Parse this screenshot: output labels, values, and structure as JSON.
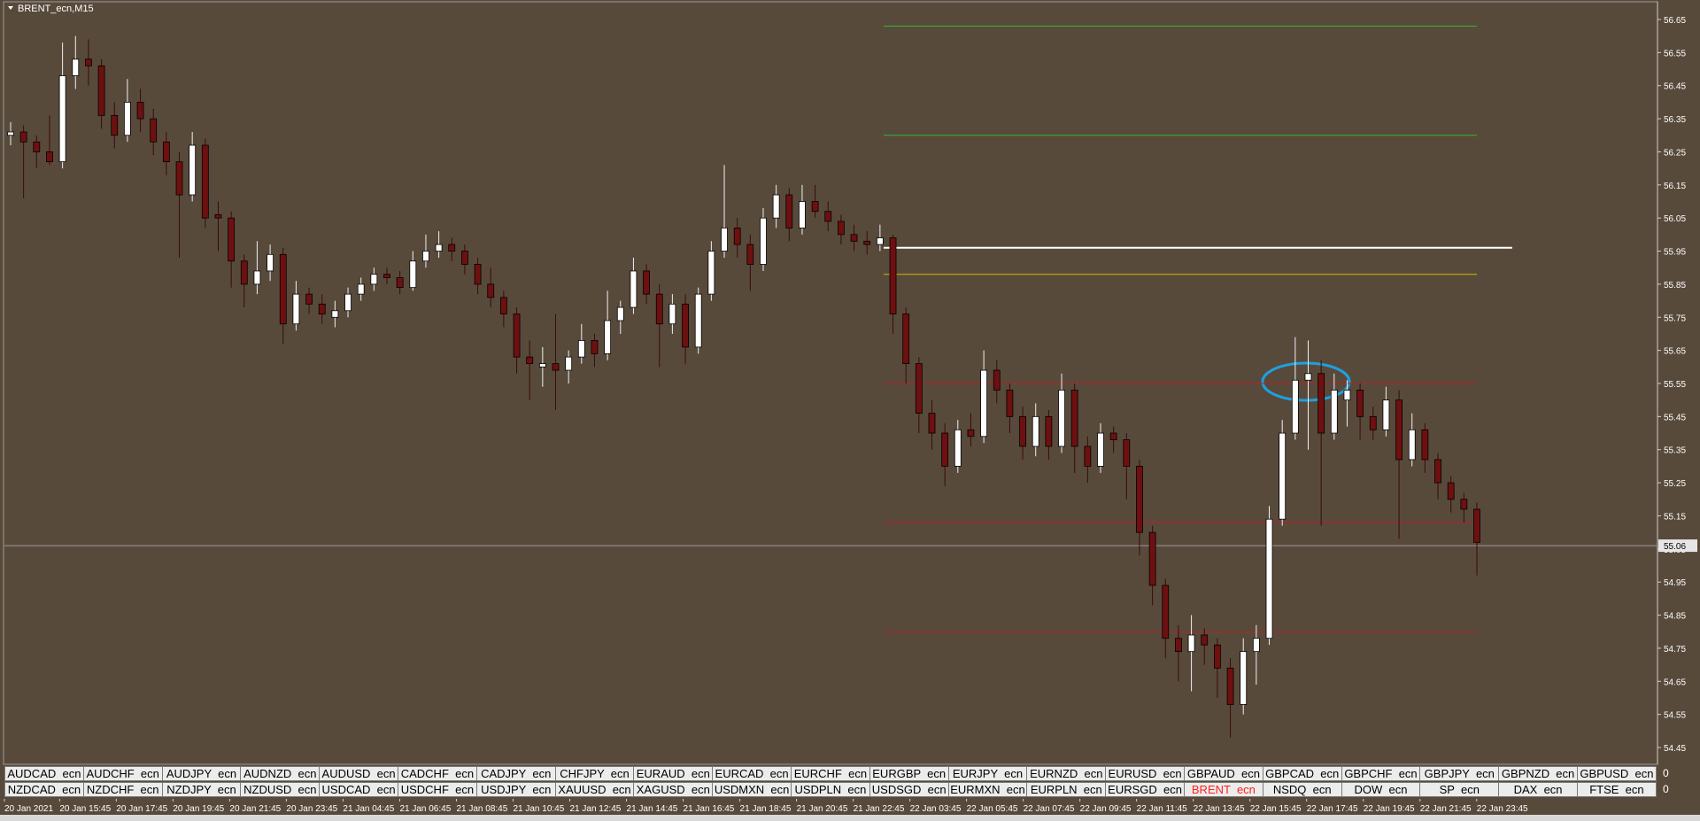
{
  "window_title": "BRENT_ecn,M15",
  "chart_data": {
    "type": "candlestick",
    "candles": [
      [
        56.3,
        56.34,
        56.27,
        56.31
      ],
      [
        56.31,
        56.33,
        56.11,
        56.28
      ],
      [
        56.28,
        56.3,
        56.2,
        56.25
      ],
      [
        56.25,
        56.36,
        56.21,
        56.22
      ],
      [
        56.22,
        56.58,
        56.2,
        56.48
      ],
      [
        56.48,
        56.6,
        56.44,
        56.53
      ],
      [
        56.53,
        56.59,
        56.45,
        56.51
      ],
      [
        56.51,
        56.53,
        56.32,
        56.36
      ],
      [
        56.36,
        56.4,
        56.26,
        56.3
      ],
      [
        56.3,
        56.47,
        56.28,
        56.4
      ],
      [
        56.4,
        56.44,
        56.31,
        56.35
      ],
      [
        56.35,
        56.38,
        56.24,
        56.28
      ],
      [
        56.28,
        56.31,
        56.18,
        56.22
      ],
      [
        56.22,
        56.25,
        55.93,
        56.12
      ],
      [
        56.12,
        56.31,
        56.1,
        56.27
      ],
      [
        56.27,
        56.29,
        56.02,
        56.05
      ],
      [
        56.06,
        56.1,
        55.95,
        56.05
      ],
      [
        56.05,
        56.07,
        55.84,
        55.92
      ],
      [
        55.92,
        55.94,
        55.78,
        55.85
      ],
      [
        55.85,
        55.98,
        55.82,
        55.89
      ],
      [
        55.89,
        55.97,
        55.86,
        55.94
      ],
      [
        55.94,
        55.96,
        55.67,
        55.73
      ],
      [
        55.73,
        55.86,
        55.71,
        55.82
      ],
      [
        55.82,
        55.84,
        55.76,
        55.79
      ],
      [
        55.79,
        55.82,
        55.73,
        55.76
      ],
      [
        55.75,
        55.8,
        55.72,
        55.77
      ],
      [
        55.77,
        55.84,
        55.75,
        55.82
      ],
      [
        55.82,
        55.87,
        55.8,
        55.85
      ],
      [
        55.85,
        55.9,
        55.83,
        55.88
      ],
      [
        55.88,
        55.9,
        55.85,
        55.87
      ],
      [
        55.87,
        55.89,
        55.82,
        55.84
      ],
      [
        55.84,
        55.95,
        55.83,
        55.92
      ],
      [
        55.92,
        56.0,
        55.9,
        55.95
      ],
      [
        55.95,
        56.01,
        55.93,
        55.97
      ],
      [
        55.97,
        55.99,
        55.92,
        55.95
      ],
      [
        55.95,
        55.97,
        55.88,
        55.91
      ],
      [
        55.91,
        55.93,
        55.82,
        55.85
      ],
      [
        55.85,
        55.9,
        55.78,
        55.81
      ],
      [
        55.81,
        55.83,
        55.72,
        55.76
      ],
      [
        55.76,
        55.78,
        55.58,
        55.63
      ],
      [
        55.63,
        55.68,
        55.5,
        55.61
      ],
      [
        55.6,
        55.66,
        55.54,
        55.61
      ],
      [
        55.61,
        55.76,
        55.47,
        55.59
      ],
      [
        55.59,
        55.65,
        55.55,
        55.63
      ],
      [
        55.63,
        55.73,
        55.61,
        55.68
      ],
      [
        55.68,
        55.7,
        55.6,
        55.64
      ],
      [
        55.64,
        55.83,
        55.62,
        55.74
      ],
      [
        55.74,
        55.8,
        55.7,
        55.78
      ],
      [
        55.78,
        55.93,
        55.76,
        55.89
      ],
      [
        55.89,
        55.91,
        55.79,
        55.82
      ],
      [
        55.82,
        55.85,
        55.6,
        55.73
      ],
      [
        55.73,
        55.82,
        55.7,
        55.79
      ],
      [
        55.79,
        55.82,
        55.61,
        55.66
      ],
      [
        55.66,
        55.84,
        55.64,
        55.82
      ],
      [
        55.82,
        55.98,
        55.8,
        55.95
      ],
      [
        55.95,
        56.21,
        55.93,
        56.02
      ],
      [
        56.02,
        56.05,
        55.93,
        55.97
      ],
      [
        55.97,
        56.0,
        55.83,
        55.91
      ],
      [
        55.91,
        56.08,
        55.89,
        56.05
      ],
      [
        56.05,
        56.15,
        56.02,
        56.12
      ],
      [
        56.12,
        56.14,
        55.98,
        56.02
      ],
      [
        56.02,
        56.15,
        56.0,
        56.1
      ],
      [
        56.1,
        56.15,
        56.05,
        56.07
      ],
      [
        56.07,
        56.1,
        56.01,
        56.04
      ],
      [
        56.04,
        56.06,
        55.97,
        56.0
      ],
      [
        56.0,
        56.03,
        55.95,
        55.98
      ],
      [
        55.98,
        56.01,
        55.94,
        55.97
      ],
      [
        55.97,
        56.03,
        55.95,
        55.99
      ],
      [
        55.99,
        56.0,
        55.7,
        55.76
      ],
      [
        55.76,
        55.78,
        55.55,
        55.61
      ],
      [
        55.61,
        55.63,
        55.4,
        55.46
      ],
      [
        55.46,
        55.5,
        55.35,
        55.4
      ],
      [
        55.4,
        55.43,
        55.24,
        55.3
      ],
      [
        55.3,
        55.44,
        55.28,
        55.41
      ],
      [
        55.41,
        55.46,
        55.36,
        55.39
      ],
      [
        55.39,
        55.65,
        55.37,
        55.59
      ],
      [
        55.59,
        55.62,
        55.49,
        55.53
      ],
      [
        55.53,
        55.55,
        55.4,
        55.45
      ],
      [
        55.45,
        55.48,
        55.32,
        55.36
      ],
      [
        55.36,
        55.49,
        55.33,
        55.45
      ],
      [
        55.45,
        55.47,
        55.32,
        55.36
      ],
      [
        55.36,
        55.58,
        55.34,
        55.53
      ],
      [
        55.53,
        55.55,
        55.28,
        55.36
      ],
      [
        55.36,
        55.39,
        55.25,
        55.3
      ],
      [
        55.3,
        55.43,
        55.28,
        55.4
      ],
      [
        55.4,
        55.42,
        55.34,
        55.38
      ],
      [
        55.38,
        55.4,
        55.2,
        55.3
      ],
      [
        55.3,
        55.32,
        55.03,
        55.1
      ],
      [
        55.1,
        55.12,
        54.88,
        54.94
      ],
      [
        54.94,
        54.96,
        54.72,
        54.78
      ],
      [
        54.78,
        54.82,
        54.65,
        54.74
      ],
      [
        54.74,
        54.85,
        54.62,
        54.79
      ],
      [
        54.79,
        54.81,
        54.7,
        54.76
      ],
      [
        54.76,
        54.78,
        54.6,
        54.69
      ],
      [
        54.69,
        54.72,
        54.48,
        54.58
      ],
      [
        54.58,
        54.78,
        54.55,
        54.74
      ],
      [
        54.74,
        54.82,
        54.64,
        54.78
      ],
      [
        54.78,
        55.18,
        54.76,
        55.14
      ],
      [
        55.14,
        55.44,
        55.12,
        55.4
      ],
      [
        55.4,
        55.69,
        55.38,
        55.56
      ],
      [
        55.56,
        55.68,
        55.35,
        55.58
      ],
      [
        55.58,
        55.62,
        55.12,
        55.4
      ],
      [
        55.4,
        55.58,
        55.38,
        55.53
      ],
      [
        55.5,
        55.56,
        55.42,
        55.53
      ],
      [
        55.53,
        55.55,
        55.38,
        55.45
      ],
      [
        55.45,
        55.48,
        55.38,
        55.41
      ],
      [
        55.41,
        55.54,
        55.39,
        55.5
      ],
      [
        55.5,
        55.53,
        55.08,
        55.32
      ],
      [
        55.32,
        55.46,
        55.3,
        55.41
      ],
      [
        55.41,
        55.43,
        55.28,
        55.32
      ],
      [
        55.32,
        55.34,
        55.2,
        55.25
      ],
      [
        55.25,
        55.27,
        55.16,
        55.2
      ],
      [
        55.2,
        55.22,
        55.13,
        55.17
      ],
      [
        55.17,
        55.19,
        54.97,
        55.07
      ]
    ],
    "bull_color": "#ffffff",
    "bear_color": "#6e1010",
    "ylim": [
      54.4,
      56.7
    ],
    "yticks": [
      56.65,
      56.55,
      56.45,
      56.35,
      56.25,
      56.15,
      56.05,
      55.95,
      55.85,
      55.75,
      55.65,
      55.55,
      55.45,
      55.35,
      55.25,
      55.15,
      55.05,
      54.95,
      54.85,
      54.75,
      54.65,
      54.55,
      54.45
    ],
    "current_price": 55.06,
    "levels": [
      {
        "value": 56.63,
        "color": "#2fb52f"
      },
      {
        "value": 56.3,
        "color": "#2fb52f"
      },
      {
        "value": 55.96,
        "color": "#ffffff"
      },
      {
        "value": 55.88,
        "color": "#d4b300"
      },
      {
        "value": 55.55,
        "color": "#b0222a"
      },
      {
        "value": 55.13,
        "color": "#b0222a"
      },
      {
        "value": 54.8,
        "color": "#b0222a"
      }
    ],
    "time_labels": [
      "20 Jan 2021",
      "20 Jan 15:45",
      "20 Jan 17:45",
      "20 Jan 19:45",
      "20 Jan 21:45",
      "20 Jan 23:45",
      "21 Jan 04:45",
      "21 Jan 06:45",
      "21 Jan 08:45",
      "21 Jan 10:45",
      "21 Jan 12:45",
      "21 Jan 14:45",
      "21 Jan 16:45",
      "21 Jan 18:45",
      "21 Jan 20:45",
      "21 Jan 22:45",
      "22 Jan 03:45",
      "22 Jan 05:45",
      "22 Jan 07:45",
      "22 Jan 09:45",
      "22 Jan 11:45",
      "22 Jan 13:45",
      "22 Jan 15:45",
      "22 Jan 17:45",
      "22 Jan 19:45",
      "22 Jan 21:45",
      "22 Jan 23:45"
    ]
  },
  "symbol_tabs": [
    [
      "AUDCAD  ecn",
      "AUDCHF  ecn",
      "AUDJPY  ecn",
      "AUDNZD  ecn",
      "AUDUSD  ecn",
      "CADCHF  ecn",
      "CADJPY  ecn",
      "CHFJPY  ecn",
      "EURAUD  ecn",
      "EURCAD  ecn",
      "EURCHF  ecn",
      "EURGBP  ecn",
      "EURJPY  ecn",
      "EURNZD  ecn",
      "EURUSD  ecn",
      "GBPAUD  ecn",
      "GBPCAD  ecn",
      "GBPCHF  ecn",
      "GBPJPY  ecn",
      "GBPNZD  ecn",
      "GBPUSD  ecn"
    ],
    [
      "NZDCAD  ecn",
      "NZDCHF  ecn",
      "NZDJPY  ecn",
      "NZDUSD  ecn",
      "USDCAD  ecn",
      "USDCHF  ecn",
      "USDJPY  ecn",
      "XAUUSD  ecn",
      "XAGUSD  ecn",
      "USDMXN  ecn",
      "USDPLN  ecn",
      "USDSGD  ecn",
      "EURMXN  ecn",
      "EURPLN  ecn",
      "EURSGD  ecn",
      "BRENT  ecn",
      "NSDQ  ecn",
      "DOW  ecn",
      "SP  ecn",
      "DAX  ecn",
      "FTSE  ecn"
    ]
  ],
  "row_markers": [
    "0",
    "0"
  ],
  "active_tab": [
    1,
    15
  ],
  "active_tab_color": "#ff2020"
}
